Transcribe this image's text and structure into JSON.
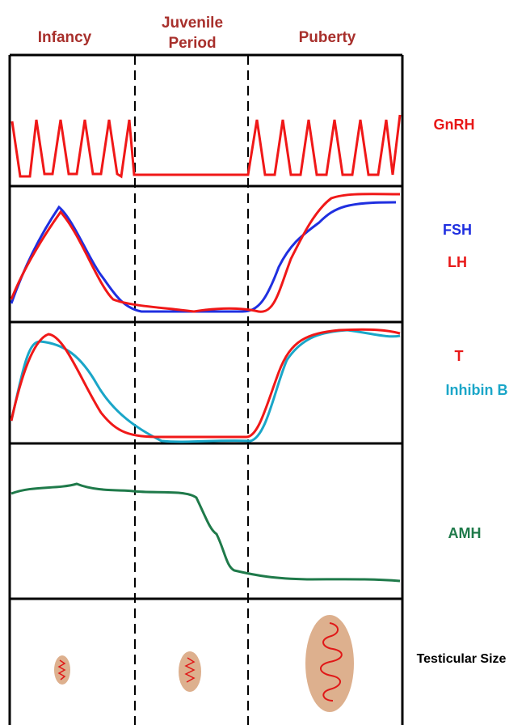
{
  "header": {
    "columns": [
      "Infancy",
      [
        "Juvenile",
        "Period"
      ],
      "Puberty"
    ]
  },
  "rows": [
    {
      "labels": [
        "GnRH"
      ]
    },
    {
      "labels": [
        "FSH",
        "LH"
      ]
    },
    {
      "labels": [
        "T",
        "Inhibin B"
      ]
    },
    {
      "labels": [
        "AMH"
      ]
    },
    {
      "labels": [
        "Testicular Size"
      ]
    }
  ]
}
